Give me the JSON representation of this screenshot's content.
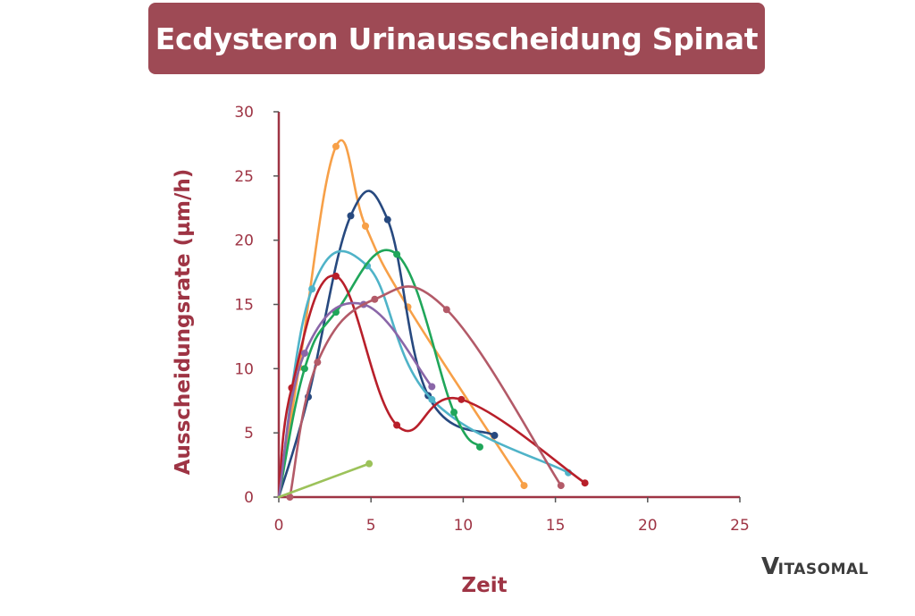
{
  "header": {
    "title": "Ecdysteron Urinausscheidung Spinat",
    "background_color": "#9e4a55"
  },
  "logo": {
    "first_letter": "V",
    "rest": "ITASOMAL"
  },
  "axes": {
    "xlabel": "Zeit",
    "ylabel": "Ausscheidungsrate (µm/h)",
    "x_ticks": [
      "0",
      "5",
      "10",
      "15",
      "20",
      "25"
    ],
    "y_ticks": [
      "0",
      "5",
      "10",
      "15",
      "20",
      "25",
      "30"
    ],
    "color": "#9e3444"
  },
  "chart_data": {
    "type": "line",
    "title": "Ecdysteron Urinausscheidung Spinat",
    "xlabel": "Zeit",
    "ylabel": "Ausscheidungsrate (µm/h)",
    "xlim": [
      0,
      25
    ],
    "ylim": [
      0,
      30
    ],
    "x_ticks": [
      0,
      5,
      10,
      15,
      20,
      25
    ],
    "y_ticks": [
      0,
      5,
      10,
      15,
      20,
      25,
      30
    ],
    "grid": false,
    "legend": null,
    "series": [
      {
        "name": "orange",
        "color": "#f7a048",
        "x": [
          0,
          1.1,
          3.1,
          4.7,
          7.0,
          13.3
        ],
        "y": [
          0,
          10.1,
          27.3,
          21.1,
          14.8,
          0.9
        ]
      },
      {
        "name": "dark-blue",
        "color": "#27497f",
        "x": [
          0,
          1.6,
          3.9,
          5.9,
          8.1,
          11.7
        ],
        "y": [
          0,
          7.8,
          21.9,
          21.6,
          7.9,
          4.8
        ]
      },
      {
        "name": "light-blue",
        "color": "#4fb3c8",
        "x": [
          0,
          1.8,
          4.8,
          8.3,
          15.7
        ],
        "y": [
          0,
          16.2,
          18.0,
          7.6,
          1.9
        ]
      },
      {
        "name": "green",
        "color": "#20a65a",
        "x": [
          0,
          1.4,
          3.1,
          6.4,
          9.5,
          10.9
        ],
        "y": [
          0,
          10.0,
          14.4,
          18.9,
          6.6,
          3.9
        ]
      },
      {
        "name": "red",
        "color": "#b81f2a",
        "x": [
          0,
          0.7,
          3.1,
          6.4,
          9.9,
          16.6
        ],
        "y": [
          0,
          8.5,
          17.2,
          5.6,
          7.6,
          1.1
        ]
      },
      {
        "name": "purple",
        "color": "#8a66a8",
        "x": [
          0,
          1.4,
          4.6,
          8.3
        ],
        "y": [
          0,
          11.2,
          15.0,
          8.6
        ]
      },
      {
        "name": "rose",
        "color": "#b35a68",
        "x": [
          0.6,
          2.1,
          5.2,
          9.1,
          15.3
        ],
        "y": [
          0,
          10.5,
          15.4,
          14.6,
          0.9
        ]
      },
      {
        "name": "light-green",
        "color": "#9cc25a",
        "x": [
          0,
          4.9
        ],
        "y": [
          0,
          2.6
        ]
      }
    ]
  }
}
